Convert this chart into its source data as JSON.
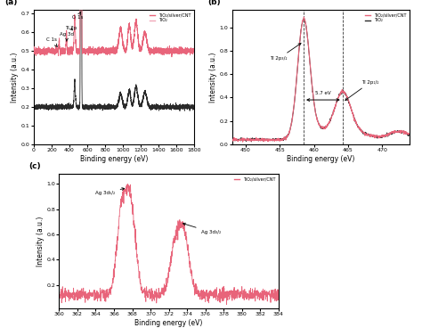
{
  "fig_width": 4.74,
  "fig_height": 3.68,
  "dpi": 100,
  "pink_color": "#E8647A",
  "light_pink_color": "#F0A8B8",
  "black_color": "#2a2a2a",
  "panel_a": {
    "label": "(a)",
    "xlabel": "Binding energy (eV)",
    "ylabel": "Intensity (a.u.)",
    "xlim": [
      0,
      1800
    ],
    "xticks": [
      0,
      200,
      400,
      600,
      800,
      1000,
      1200,
      1400,
      1600,
      1800
    ],
    "legend": [
      "TiO₂/silver/CNT",
      "TiO₂"
    ]
  },
  "panel_b": {
    "label": "(b)",
    "xlabel": "Binding energy (eV)",
    "ylabel": "Intensity (a.u.)",
    "xlim": [
      448,
      474
    ],
    "xticks": [
      450,
      455,
      460,
      465,
      470
    ],
    "legend": [
      "TiO₂/silver/CNT",
      "TiO₂"
    ],
    "dashed_lines": [
      458.5,
      464.2
    ],
    "arrow_label": "5.7 eV",
    "annot_32": "Ti 2p₃/₂",
    "annot_12": "Ti 2p₁/₂"
  },
  "panel_c": {
    "label": "(c)",
    "xlabel": "Binding energy (eV)",
    "ylabel": "Intensity (a.u.)",
    "xlim": [
      360,
      384
    ],
    "xticks": [
      360,
      362,
      364,
      366,
      368,
      370,
      372,
      374,
      376,
      378,
      380,
      382,
      384
    ],
    "legend": [
      "TiO₂/silver/CNT"
    ],
    "annot_52": "Ag 3d₅/₂",
    "annot_32": "Ag 3d₃/₂"
  }
}
